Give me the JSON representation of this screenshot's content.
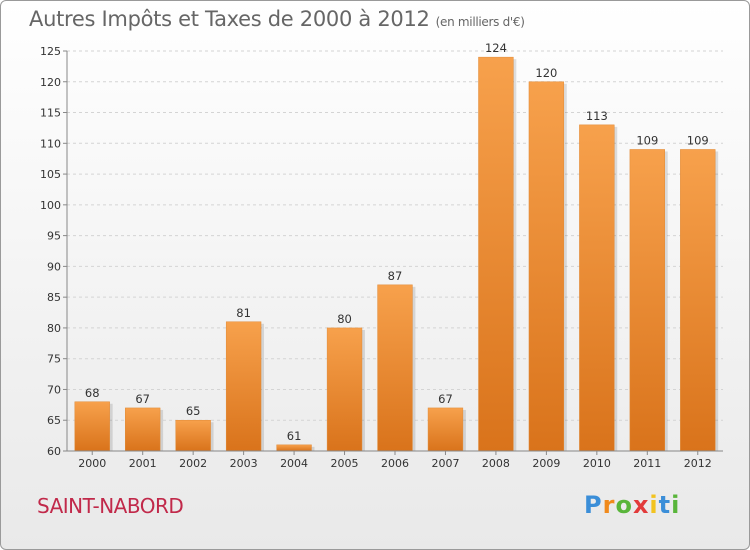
{
  "page": {
    "title": "Autres Impôts et Taxes de 2000 à 2012",
    "unit": "(en milliers d'€)",
    "commune": "SAINT-NABORD",
    "logo": {
      "text": "Proxiti",
      "letters": [
        "P",
        "r",
        "o",
        "x",
        "i",
        "t",
        "i"
      ]
    }
  },
  "colors": {
    "bar_top": "#f7a14c",
    "bar_bottom": "#d9731b",
    "commune": "#c1294a",
    "logo": [
      "#3b8ed8",
      "#f08a1c",
      "#59b53a",
      "#e23b3b",
      "#f2c320",
      "#3b8ed8",
      "#59b53a"
    ]
  },
  "chart_data": {
    "type": "bar",
    "title": "Autres Impôts et Taxes de 2000 à 2012",
    "subtitle": "(en milliers d'€)",
    "categories": [
      "2000",
      "2001",
      "2002",
      "2003",
      "2004",
      "2005",
      "2006",
      "2007",
      "2008",
      "2009",
      "2010",
      "2011",
      "2012"
    ],
    "values": [
      68,
      67,
      65,
      81,
      61,
      80,
      87,
      67,
      124,
      120,
      113,
      109,
      109
    ],
    "ylim": [
      60,
      125
    ],
    "yticks": [
      60,
      65,
      70,
      75,
      80,
      85,
      90,
      95,
      100,
      105,
      110,
      115,
      120,
      125
    ],
    "grid": true,
    "xlabel": "",
    "ylabel": ""
  }
}
